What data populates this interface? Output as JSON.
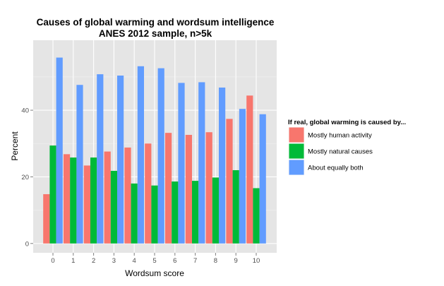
{
  "chart_data": {
    "type": "bar",
    "title": "Causes of global warming and wordsum intelligence",
    "subtitle": "ANES 2012 sample, n>5k",
    "xlabel": "Wordsum score",
    "ylabel": "Percent",
    "categories": [
      "0",
      "1",
      "2",
      "3",
      "4",
      "5",
      "6",
      "7",
      "8",
      "9",
      "10"
    ],
    "ylim": [
      -2.8,
      61
    ],
    "yticks": [
      0,
      20,
      40
    ],
    "grid": true,
    "legend_position": "right",
    "legend_title": "If real, global warming is caused by...",
    "series": [
      {
        "name": "Mostly human activity",
        "color": "#F8766D",
        "values": [
          14.8,
          26.8,
          23.4,
          27.6,
          28.8,
          30.0,
          33.2,
          32.6,
          33.4,
          37.4,
          44.4
        ]
      },
      {
        "name": "Mostly natural causes",
        "color": "#00BA38",
        "values": [
          29.4,
          25.8,
          25.8,
          21.8,
          18.0,
          17.4,
          18.6,
          18.8,
          19.8,
          22.0,
          16.6
        ]
      },
      {
        "name": "About equally both",
        "color": "#619CFF",
        "values": [
          55.8,
          47.6,
          50.8,
          50.4,
          53.2,
          52.6,
          48.2,
          48.4,
          46.8,
          40.4,
          38.8
        ]
      }
    ]
  }
}
